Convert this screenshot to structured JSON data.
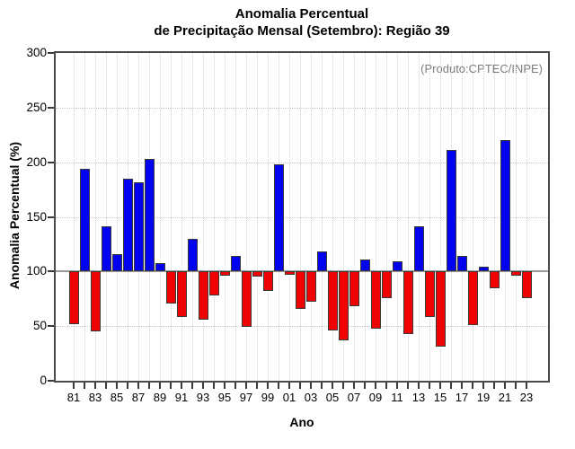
{
  "title": {
    "line1": "Anomalia Percentual",
    "line2": "de Precipitação Mensal (Setembro): Região 39"
  },
  "annotation": "(Produto:CPTEC/INPE)",
  "chart_data": {
    "type": "bar",
    "title": "Anomalia Percentual de Precipitação Mensal (Setembro): Região 39",
    "xlabel": "Ano",
    "ylabel": "Anomalia Percentual (%)",
    "ylim": [
      0,
      300
    ],
    "yticks": [
      0,
      50,
      100,
      150,
      200,
      250,
      300
    ],
    "baseline": 100,
    "grid": "dotted",
    "legend": "none",
    "positive_color": "#0202ee",
    "negative_color": "#ee0202",
    "categories": [
      "81",
      "82",
      "83",
      "84",
      "85",
      "86",
      "87",
      "88",
      "89",
      "90",
      "91",
      "92",
      "93",
      "94",
      "95",
      "96",
      "97",
      "98",
      "99",
      "00",
      "01",
      "02",
      "03",
      "04",
      "05",
      "06",
      "07",
      "08",
      "09",
      "10",
      "11",
      "12",
      "13",
      "14",
      "15",
      "16",
      "17",
      "18",
      "19",
      "20",
      "21",
      "22",
      "23"
    ],
    "values": [
      52,
      194,
      45,
      141,
      116,
      185,
      182,
      203,
      108,
      71,
      58,
      130,
      56,
      78,
      96,
      114,
      49,
      95,
      82,
      198,
      97,
      66,
      72,
      118,
      46,
      37,
      68,
      111,
      48,
      76,
      109,
      43,
      141,
      58,
      31,
      211,
      114,
      51,
      104,
      85,
      220,
      96,
      76
    ],
    "x_tick_labels": [
      "81",
      "83",
      "85",
      "87",
      "89",
      "91",
      "93",
      "95",
      "97",
      "99",
      "01",
      "03",
      "05",
      "07",
      "09",
      "11",
      "13",
      "15",
      "17",
      "19",
      "21",
      "23"
    ]
  }
}
